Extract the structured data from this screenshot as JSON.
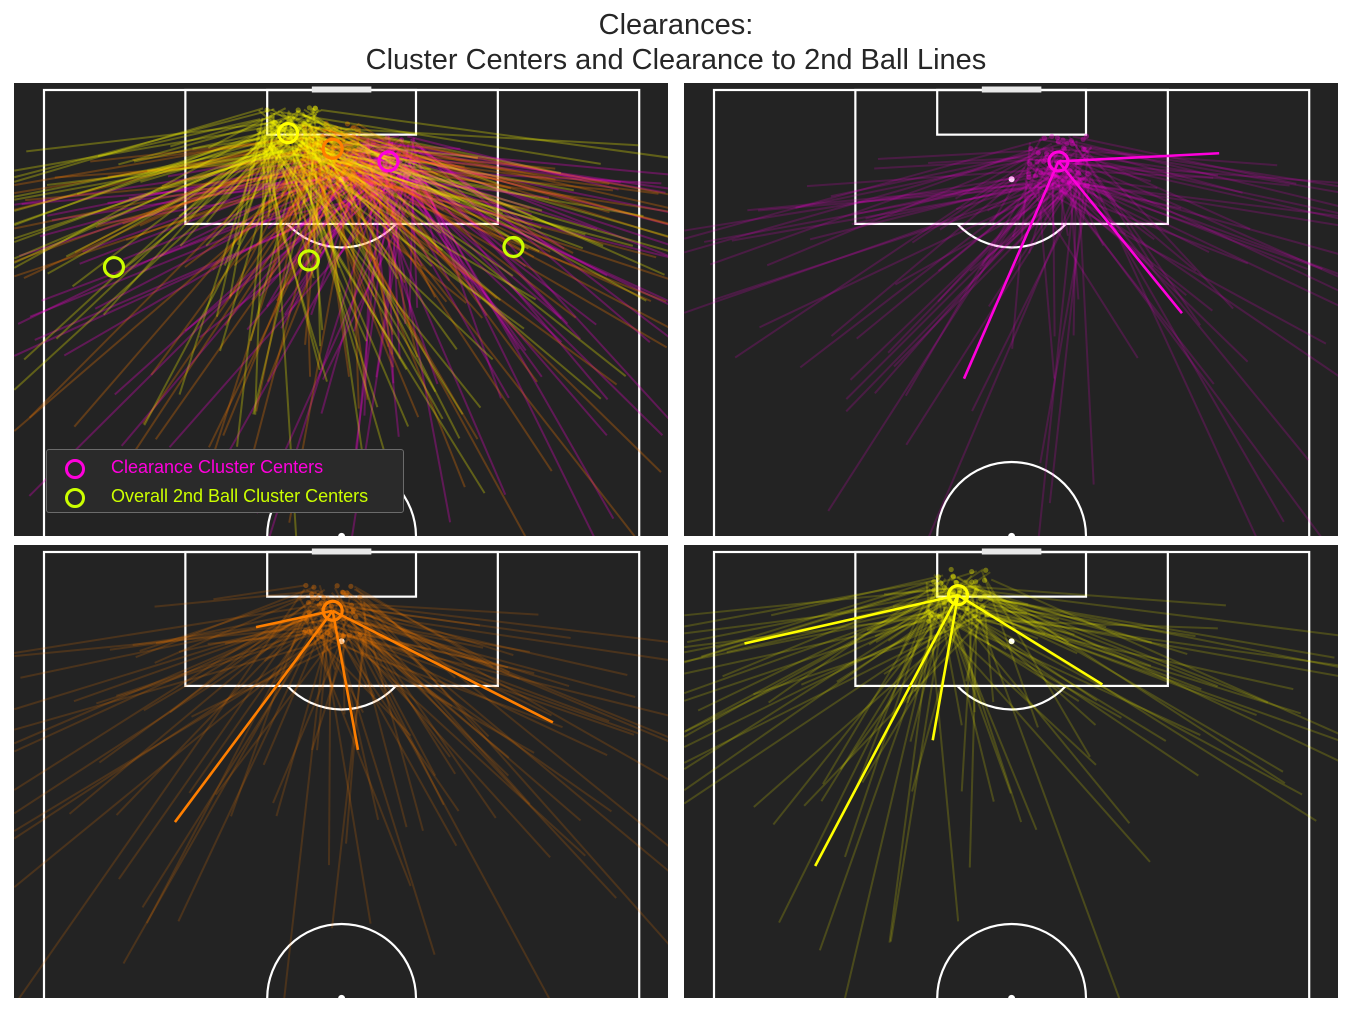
{
  "title_lines": [
    "Clearances:",
    "Cluster Centers and Clearance to 2nd Ball Lines"
  ],
  "legend": {
    "clearance_label": "Clearance Cluster Centers",
    "clearance_color": "#ff00dc",
    "second_ball_label": "Overall 2nd Ball Cluster Centers",
    "second_ball_color": "#ccff00"
  },
  "chart_data": {
    "type": "scatter",
    "pitch": {
      "background": "#232323",
      "line_color": "#ffffff",
      "view": "half-pitch, defending goal at top",
      "x_range": [
        0,
        80
      ],
      "y_range": [
        0,
        60
      ]
    },
    "cluster_colors": [
      "#ff00dc",
      "#ff7f00",
      "#ffff00"
    ],
    "clearance_centers": [
      {
        "cluster": 0,
        "x": 46.3,
        "y": 9.6,
        "color": "#ff00dc"
      },
      {
        "cluster": 1,
        "x": 38.8,
        "y": 7.9,
        "color": "#ff7f00"
      },
      {
        "cluster": 2,
        "x": 32.8,
        "y": 5.8,
        "color": "#ffff00"
      }
    ],
    "overall_second_ball_centers": [
      {
        "x": 9.4,
        "y": 23.8
      },
      {
        "x": 35.6,
        "y": 22.9
      },
      {
        "x": 63.1,
        "y": 21.1
      }
    ],
    "panels": [
      {
        "panel": "all_clusters",
        "show_legend": true
      },
      {
        "panel": "cluster_0",
        "color": "#ff00dc",
        "center": {
          "x": 46.3,
          "y": 9.6
        },
        "second_ball_ends": [
          {
            "x": 67.9,
            "y": 8.5
          },
          {
            "x": 62.9,
            "y": 30.0
          },
          {
            "x": 33.6,
            "y": 38.8
          }
        ]
      },
      {
        "panel": "cluster_1",
        "color": "#ff7f00",
        "center": {
          "x": 38.8,
          "y": 7.9
        },
        "second_ball_ends": [
          {
            "x": 28.5,
            "y": 10.1
          },
          {
            "x": 68.4,
            "y": 22.9
          },
          {
            "x": 42.2,
            "y": 26.6
          },
          {
            "x": 17.6,
            "y": 36.3
          }
        ]
      },
      {
        "panel": "cluster_2",
        "color": "#ffff00",
        "center": {
          "x": 32.8,
          "y": 5.8
        },
        "second_ball_ends": [
          {
            "x": 4.1,
            "y": 12.3
          },
          {
            "x": 52.2,
            "y": 17.8
          },
          {
            "x": 29.4,
            "y": 25.3
          },
          {
            "x": 13.6,
            "y": 42.2
          }
        ]
      }
    ]
  }
}
